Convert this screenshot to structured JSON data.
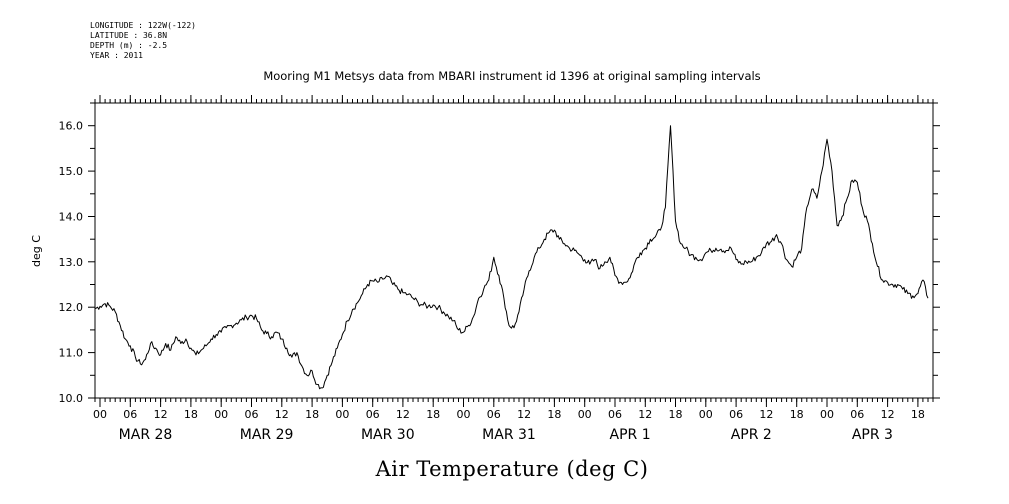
{
  "metadata": {
    "longitude": "LONGITUDE : 122W(-122)",
    "latitude": "LATITUDE : 36.8N",
    "depth": "DEPTH (m) : -2.5",
    "year": "YEAR : 2011"
  },
  "chart_data": {
    "type": "line",
    "title": "Mooring M1 Metsys data from MBARI instrument id 1396 at original sampling intervals",
    "xlabel": "Air Temperature (deg C)",
    "ylabel": "deg C",
    "ylim": [
      10.0,
      16.5
    ],
    "yticks": [
      "10.0",
      "11.0",
      "12.0",
      "13.0",
      "14.0",
      "15.0",
      "16.0"
    ],
    "x_unit": "hours since MAR 28 00:00",
    "xlim": [
      -1,
      165
    ],
    "hour_tick_labels": [
      "00",
      "06",
      "12",
      "18"
    ],
    "day_labels": [
      "MAR 28",
      "MAR 29",
      "MAR 30",
      "MAR 31",
      "APR  1",
      "APR  2",
      "APR  3"
    ],
    "grid": false,
    "series": [
      {
        "values": [
          [
            -1,
            11.97
          ],
          [
            0,
            12.02
          ],
          [
            1,
            12.08
          ],
          [
            2,
            12.02
          ],
          [
            3,
            11.9
          ],
          [
            4,
            11.6
          ],
          [
            5,
            11.3
          ],
          [
            6,
            11.15
          ],
          [
            7,
            10.9
          ],
          [
            8,
            10.75
          ],
          [
            9,
            10.85
          ],
          [
            10,
            11.2
          ],
          [
            11,
            11.1
          ],
          [
            12,
            10.95
          ],
          [
            13,
            11.2
          ],
          [
            14,
            11.05
          ],
          [
            15,
            11.35
          ],
          [
            16,
            11.2
          ],
          [
            17,
            11.3
          ],
          [
            18,
            11.1
          ],
          [
            19,
            10.95
          ],
          [
            20,
            11.05
          ],
          [
            21,
            11.15
          ],
          [
            22,
            11.3
          ],
          [
            23,
            11.4
          ],
          [
            24,
            11.45
          ],
          [
            25,
            11.55
          ],
          [
            26,
            11.6
          ],
          [
            27,
            11.65
          ],
          [
            28,
            11.72
          ],
          [
            29,
            11.78
          ],
          [
            30,
            11.82
          ],
          [
            31,
            11.75
          ],
          [
            32,
            11.5
          ],
          [
            33,
            11.42
          ],
          [
            34,
            11.35
          ],
          [
            35,
            11.45
          ],
          [
            36,
            11.3
          ],
          [
            37,
            11.1
          ],
          [
            38,
            10.9
          ],
          [
            39,
            11.0
          ],
          [
            40,
            10.7
          ],
          [
            41,
            10.5
          ],
          [
            42,
            10.6
          ],
          [
            43,
            10.3
          ],
          [
            44,
            10.22
          ],
          [
            45,
            10.5
          ],
          [
            46,
            10.8
          ],
          [
            47,
            11.1
          ],
          [
            48,
            11.4
          ],
          [
            49,
            11.7
          ],
          [
            50,
            11.95
          ],
          [
            51,
            12.1
          ],
          [
            52,
            12.3
          ],
          [
            53,
            12.5
          ],
          [
            54,
            12.58
          ],
          [
            55,
            12.55
          ],
          [
            56,
            12.62
          ],
          [
            57,
            12.68
          ],
          [
            58,
            12.5
          ],
          [
            59,
            12.4
          ],
          [
            60,
            12.32
          ],
          [
            61,
            12.28
          ],
          [
            62,
            12.2
          ],
          [
            63,
            12.1
          ],
          [
            64,
            12.05
          ],
          [
            65,
            12.02
          ],
          [
            66,
            12.05
          ],
          [
            67,
            12.0
          ],
          [
            68,
            11.9
          ],
          [
            69,
            11.8
          ],
          [
            70,
            11.7
          ],
          [
            71,
            11.5
          ],
          [
            72,
            11.45
          ],
          [
            73,
            11.6
          ],
          [
            74,
            11.8
          ],
          [
            75,
            12.2
          ],
          [
            76,
            12.4
          ],
          [
            77,
            12.6
          ],
          [
            78,
            13.1
          ],
          [
            79,
            12.7
          ],
          [
            80,
            12.2
          ],
          [
            81,
            11.6
          ],
          [
            82,
            11.55
          ],
          [
            83,
            11.9
          ],
          [
            84,
            12.4
          ],
          [
            85,
            12.8
          ],
          [
            86,
            13.1
          ],
          [
            87,
            13.3
          ],
          [
            88,
            13.5
          ],
          [
            89,
            13.65
          ],
          [
            90,
            13.7
          ],
          [
            91,
            13.5
          ],
          [
            92,
            13.4
          ],
          [
            93,
            13.3
          ],
          [
            94,
            13.25
          ],
          [
            95,
            13.15
          ],
          [
            96,
            13.05
          ],
          [
            97,
            12.95
          ],
          [
            98,
            13.05
          ],
          [
            99,
            12.85
          ],
          [
            100,
            13.0
          ],
          [
            101,
            13.1
          ],
          [
            102,
            12.7
          ],
          [
            103,
            12.55
          ],
          [
            104,
            12.55
          ],
          [
            105,
            12.65
          ],
          [
            106,
            13.0
          ],
          [
            107,
            13.2
          ],
          [
            108,
            13.3
          ],
          [
            109,
            13.5
          ],
          [
            110,
            13.55
          ],
          [
            111,
            13.7
          ],
          [
            112,
            14.2
          ],
          [
            113,
            16.0
          ],
          [
            114,
            13.9
          ],
          [
            115,
            13.4
          ],
          [
            116,
            13.3
          ],
          [
            117,
            13.15
          ],
          [
            118,
            13.1
          ],
          [
            119,
            13.05
          ],
          [
            120,
            13.2
          ],
          [
            121,
            13.25
          ],
          [
            122,
            13.3
          ],
          [
            123,
            13.28
          ],
          [
            124,
            13.25
          ],
          [
            125,
            13.3
          ],
          [
            126,
            13.05
          ],
          [
            127,
            12.95
          ],
          [
            128,
            13.0
          ],
          [
            129,
            13.0
          ],
          [
            130,
            13.1
          ],
          [
            131,
            13.2
          ],
          [
            132,
            13.4
          ],
          [
            133,
            13.45
          ],
          [
            134,
            13.6
          ],
          [
            135,
            13.4
          ],
          [
            136,
            13.05
          ],
          [
            137,
            12.9
          ],
          [
            138,
            13.1
          ],
          [
            139,
            13.3
          ],
          [
            140,
            14.2
          ],
          [
            141,
            14.6
          ],
          [
            142,
            14.4
          ],
          [
            143,
            15.0
          ],
          [
            144,
            15.7
          ],
          [
            145,
            15.0
          ],
          [
            146,
            13.8
          ],
          [
            147,
            14.0
          ],
          [
            148,
            14.4
          ],
          [
            149,
            14.8
          ],
          [
            150,
            14.75
          ],
          [
            151,
            14.2
          ],
          [
            152,
            13.9
          ],
          [
            153,
            13.4
          ],
          [
            154,
            12.9
          ],
          [
            155,
            12.6
          ],
          [
            156,
            12.55
          ],
          [
            157,
            12.5
          ],
          [
            158,
            12.5
          ],
          [
            159,
            12.4
          ],
          [
            160,
            12.3
          ],
          [
            161,
            12.25
          ],
          [
            162,
            12.3
          ],
          [
            163,
            12.6
          ],
          [
            164,
            12.2
          ]
        ]
      }
    ]
  }
}
